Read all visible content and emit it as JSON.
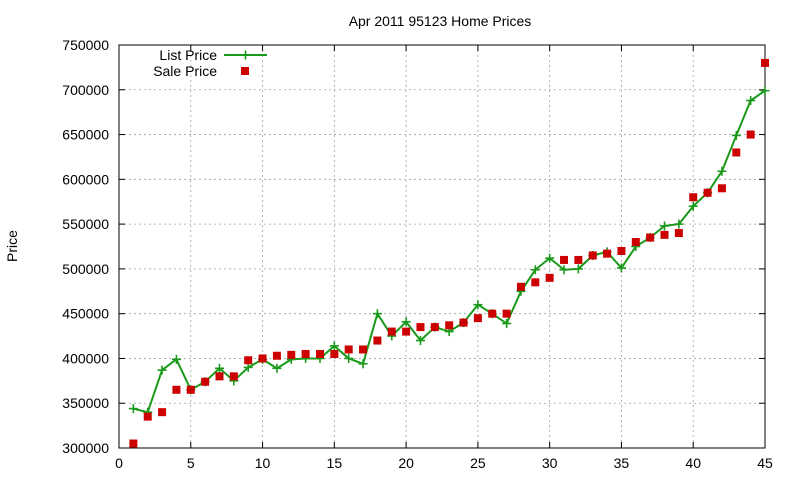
{
  "chart_data": {
    "type": "line",
    "title": "Apr 2011 95123 Home Prices",
    "xlabel": "",
    "ylabel": "Price",
    "xlim": [
      0,
      45
    ],
    "ylim": [
      300000,
      750000
    ],
    "xticks": [
      0,
      5,
      10,
      15,
      20,
      25,
      30,
      35,
      40,
      45
    ],
    "yticks": [
      300000,
      350000,
      400000,
      450000,
      500000,
      550000,
      600000,
      650000,
      700000,
      750000
    ],
    "grid": true,
    "legend_position": "top-left",
    "series": [
      {
        "name": "List Price",
        "style": "line-with-plus-markers",
        "color": "#1a9a1a",
        "x": [
          1,
          2,
          3,
          4,
          5,
          6,
          7,
          8,
          9,
          10,
          11,
          12,
          13,
          14,
          15,
          16,
          17,
          18,
          19,
          20,
          21,
          22,
          23,
          24,
          25,
          26,
          27,
          28,
          29,
          30,
          31,
          32,
          33,
          34,
          35,
          36,
          37,
          38,
          39,
          40,
          41,
          42,
          43,
          44,
          45
        ],
        "y": [
          344000,
          340000,
          387000,
          399000,
          365000,
          374000,
          389000,
          375000,
          390000,
          399000,
          389000,
          399000,
          400000,
          400000,
          414000,
          400000,
          394000,
          450000,
          425000,
          441000,
          420000,
          435000,
          430000,
          440000,
          460000,
          450000,
          439000,
          475000,
          499000,
          512000,
          499000,
          500000,
          515000,
          519000,
          501000,
          525000,
          535000,
          548000,
          550000,
          570000,
          585000,
          609000,
          649000,
          688000,
          699000
        ]
      },
      {
        "name": "Sale Price",
        "style": "square-markers",
        "color": "#cc0000",
        "x": [
          1,
          2,
          3,
          4,
          5,
          6,
          7,
          8,
          9,
          10,
          11,
          12,
          13,
          14,
          15,
          16,
          17,
          18,
          19,
          20,
          21,
          22,
          23,
          24,
          25,
          26,
          27,
          28,
          29,
          30,
          31,
          32,
          33,
          34,
          35,
          36,
          37,
          38,
          39,
          40,
          41,
          42,
          43,
          44,
          45
        ],
        "y": [
          305000,
          335000,
          340000,
          365000,
          365000,
          374000,
          380000,
          380000,
          398000,
          400000,
          403000,
          404000,
          405000,
          405000,
          405000,
          410000,
          410000,
          420000,
          430000,
          430000,
          435000,
          435000,
          437000,
          440000,
          445000,
          450000,
          450000,
          480000,
          485000,
          490000,
          510000,
          510000,
          515000,
          517000,
          520000,
          530000,
          535000,
          538000,
          540000,
          580000,
          585000,
          590000,
          630000,
          650000,
          730000
        ]
      }
    ]
  }
}
